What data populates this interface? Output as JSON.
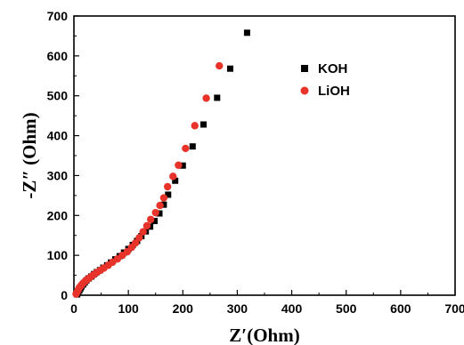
{
  "chart_data": {
    "type": "scatter",
    "title": "",
    "xlabel": "Z′(Ohm)",
    "ylabel": "-Z″ (Ohm)",
    "xlim": [
      0,
      700
    ],
    "ylim": [
      0,
      700
    ],
    "xticks": [
      0,
      100,
      200,
      300,
      400,
      500,
      600,
      700
    ],
    "yticks": [
      0,
      100,
      200,
      300,
      400,
      500,
      600,
      700
    ],
    "grid": false,
    "legend_position": "top-right",
    "series": [
      {
        "name": "KOH",
        "marker": "square",
        "color": "#000000",
        "points": [
          [
            6,
            2
          ],
          [
            8,
            7
          ],
          [
            10,
            12
          ],
          [
            12,
            17
          ],
          [
            14,
            22
          ],
          [
            17,
            27
          ],
          [
            20,
            32
          ],
          [
            23,
            37
          ],
          [
            27,
            42
          ],
          [
            32,
            47
          ],
          [
            37,
            53
          ],
          [
            42,
            58
          ],
          [
            48,
            63
          ],
          [
            54,
            69
          ],
          [
            61,
            75
          ],
          [
            68,
            82
          ],
          [
            76,
            90
          ],
          [
            84,
            98
          ],
          [
            92,
            107
          ],
          [
            100,
            116
          ],
          [
            108,
            126
          ],
          [
            116,
            136
          ],
          [
            124,
            148
          ],
          [
            132,
            160
          ],
          [
            140,
            172
          ],
          [
            148,
            186
          ],
          [
            157,
            205
          ],
          [
            165,
            227
          ],
          [
            173,
            252
          ],
          [
            186,
            287
          ],
          [
            200,
            325
          ],
          [
            218,
            373
          ],
          [
            238,
            428
          ],
          [
            263,
            495
          ],
          [
            287,
            568
          ],
          [
            318,
            658
          ]
        ]
      },
      {
        "name": "LiOH",
        "marker": "circle",
        "color": "#e8332a",
        "points": [
          [
            4,
            3
          ],
          [
            6,
            8
          ],
          [
            8,
            14
          ],
          [
            10,
            19
          ],
          [
            13,
            24
          ],
          [
            16,
            29
          ],
          [
            20,
            34
          ],
          [
            24,
            39
          ],
          [
            29,
            44
          ],
          [
            35,
            50
          ],
          [
            41,
            56
          ],
          [
            48,
            62
          ],
          [
            55,
            68
          ],
          [
            63,
            75
          ],
          [
            71,
            83
          ],
          [
            80,
            91
          ],
          [
            89,
            100
          ],
          [
            98,
            109
          ],
          [
            106,
            120
          ],
          [
            113,
            131
          ],
          [
            120,
            144
          ],
          [
            127,
            159
          ],
          [
            134,
            174
          ],
          [
            141,
            190
          ],
          [
            150,
            207
          ],
          [
            158,
            225
          ],
          [
            165,
            244
          ],
          [
            172,
            272
          ],
          [
            182,
            298
          ],
          [
            192,
            326
          ],
          [
            205,
            368
          ],
          [
            222,
            425
          ],
          [
            243,
            494
          ],
          [
            267,
            575
          ]
        ]
      }
    ]
  }
}
